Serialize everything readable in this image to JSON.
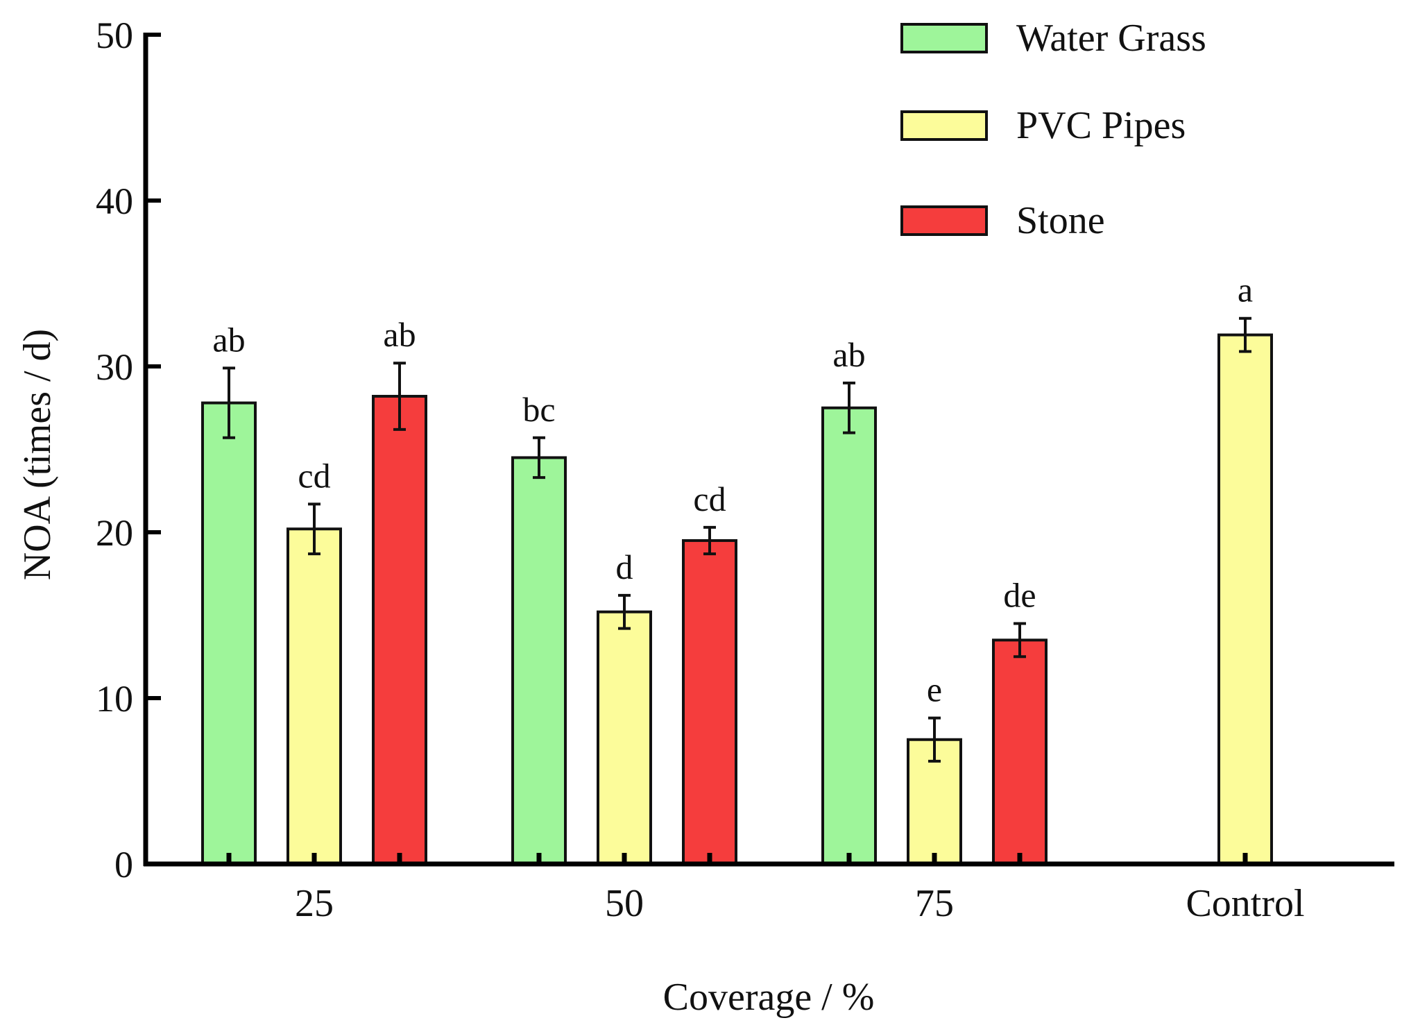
{
  "chart_data": {
    "type": "bar",
    "xlabel": "Coverage / %",
    "ylabel": "NOA (times / d)",
    "ylim": [
      0,
      50
    ],
    "yticks": [
      0,
      10,
      20,
      30,
      40,
      50
    ],
    "grid": false,
    "legend_position": "top-right",
    "categories": [
      "25",
      "50",
      "75",
      "Control"
    ],
    "series": [
      {
        "name": "Water Grass",
        "color": "#9ef59a",
        "values": [
          27.8,
          24.5,
          27.5,
          null
        ],
        "errors": [
          2.1,
          1.2,
          1.5,
          null
        ],
        "labels": [
          "ab",
          "bc",
          "ab",
          null
        ]
      },
      {
        "name": "PVC Pipes",
        "color": "#fcfc9a",
        "values": [
          20.2,
          15.2,
          7.5,
          31.9
        ],
        "errors": [
          1.5,
          1.0,
          1.3,
          1.0
        ],
        "labels": [
          "cd",
          "d",
          "e",
          "a"
        ]
      },
      {
        "name": "Stone",
        "color": "#f53d3d",
        "values": [
          28.2,
          19.5,
          13.5,
          null
        ],
        "errors": [
          2.0,
          0.8,
          1.0,
          null
        ],
        "labels": [
          "ab",
          "cd",
          "de",
          null
        ]
      }
    ]
  }
}
